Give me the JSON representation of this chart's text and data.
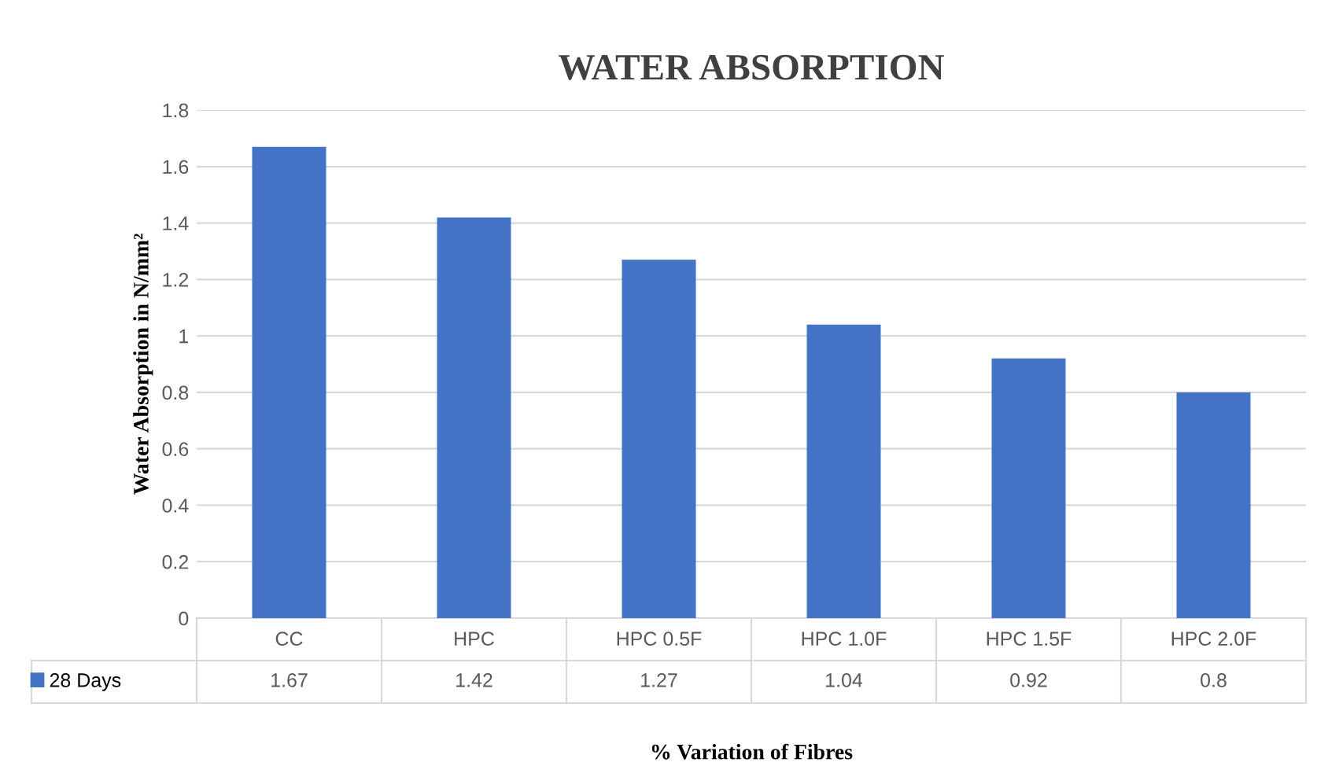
{
  "chart_data": {
    "type": "bar",
    "title": "WATER ABSORPTION",
    "xlabel": "% Variation of Fibres",
    "ylabel": "Water Absorption in N/mm²",
    "categories": [
      "CC",
      "HPC",
      "HPC 0.5F",
      "HPC 1.0F",
      "HPC 1.5F",
      "HPC 2.0F"
    ],
    "series": [
      {
        "name": "28 Days",
        "color": "#4472c4",
        "values": [
          1.67,
          1.42,
          1.27,
          1.04,
          0.92,
          0.8
        ]
      }
    ],
    "ylim": [
      0,
      1.8
    ],
    "yticks": [
      0,
      0.2,
      0.4,
      0.6,
      0.8,
      1,
      1.2,
      1.4,
      1.6,
      1.8
    ],
    "grid": "y",
    "legend": "bottom left",
    "data_labels": true
  }
}
